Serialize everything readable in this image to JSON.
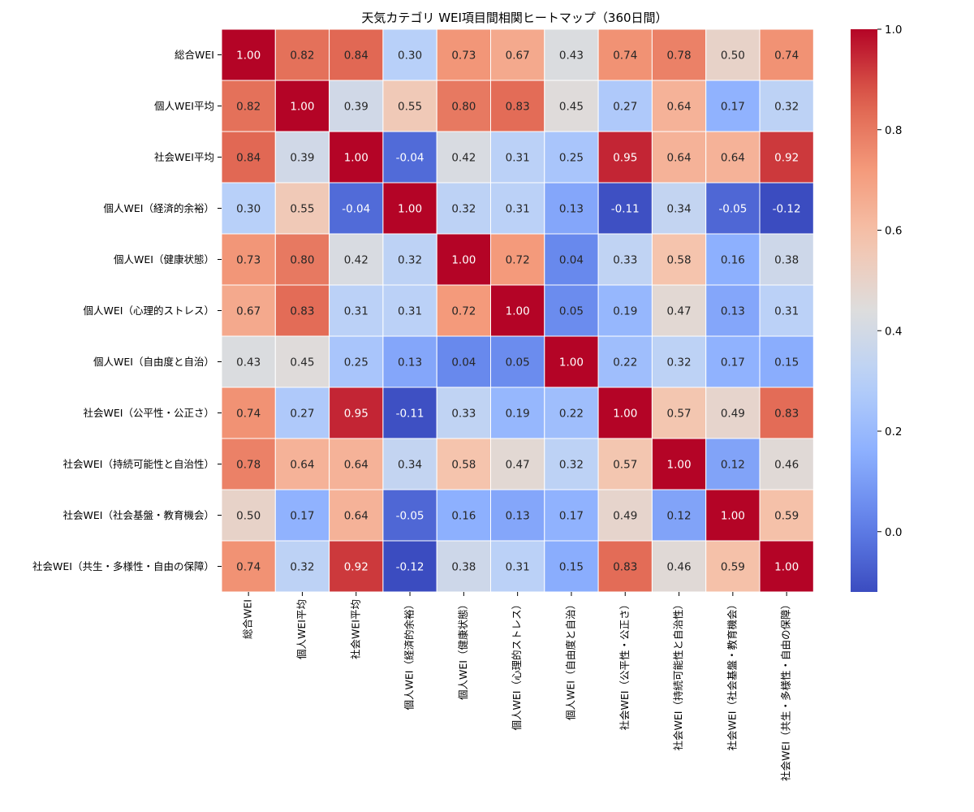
{
  "chart_data": {
    "type": "heatmap",
    "title": "天気カテゴリ WEI項目間相関ヒートマップ（360日間）",
    "labels": [
      "総合WEI",
      "個人WEI平均",
      "社会WEI平均",
      "個人WEI（経済的余裕）",
      "個人WEI（健康状態）",
      "個人WEI（心理的ストレス）",
      "個人WEI（自由度と自治）",
      "社会WEI（公平性・公正さ）",
      "社会WEI（持続可能性と自治性）",
      "社会WEI（社会基盤・教育機会）",
      "社会WEI（共生・多様性・自由の保障）"
    ],
    "matrix": [
      [
        1.0,
        0.82,
        0.84,
        0.3,
        0.73,
        0.67,
        0.43,
        0.74,
        0.78,
        0.5,
        0.74
      ],
      [
        0.82,
        1.0,
        0.39,
        0.55,
        0.8,
        0.83,
        0.45,
        0.27,
        0.64,
        0.17,
        0.32
      ],
      [
        0.84,
        0.39,
        1.0,
        -0.04,
        0.42,
        0.31,
        0.25,
        0.95,
        0.64,
        0.64,
        0.92
      ],
      [
        0.3,
        0.55,
        -0.04,
        1.0,
        0.32,
        0.31,
        0.13,
        -0.11,
        0.34,
        -0.05,
        -0.12
      ],
      [
        0.73,
        0.8,
        0.42,
        0.32,
        1.0,
        0.72,
        0.04,
        0.33,
        0.58,
        0.16,
        0.38
      ],
      [
        0.67,
        0.83,
        0.31,
        0.31,
        0.72,
        1.0,
        0.05,
        0.19,
        0.47,
        0.13,
        0.31
      ],
      [
        0.43,
        0.45,
        0.25,
        0.13,
        0.04,
        0.05,
        1.0,
        0.22,
        0.32,
        0.17,
        0.15
      ],
      [
        0.74,
        0.27,
        0.95,
        -0.11,
        0.33,
        0.19,
        0.22,
        1.0,
        0.57,
        0.49,
        0.83
      ],
      [
        0.78,
        0.64,
        0.64,
        0.34,
        0.58,
        0.47,
        0.32,
        0.57,
        1.0,
        0.12,
        0.46
      ],
      [
        0.5,
        0.17,
        0.64,
        -0.05,
        0.16,
        0.13,
        0.17,
        0.49,
        0.12,
        1.0,
        0.59
      ],
      [
        0.74,
        0.32,
        0.92,
        -0.12,
        0.38,
        0.31,
        0.15,
        0.83,
        0.46,
        0.59,
        1.0
      ]
    ],
    "colormap": "coolwarm",
    "vmin": -0.12,
    "vmax": 1.0,
    "colorbar_ticks": [
      0.0,
      0.2,
      0.4,
      0.6,
      0.8,
      1.0
    ],
    "grid": false,
    "annotations": true
  }
}
